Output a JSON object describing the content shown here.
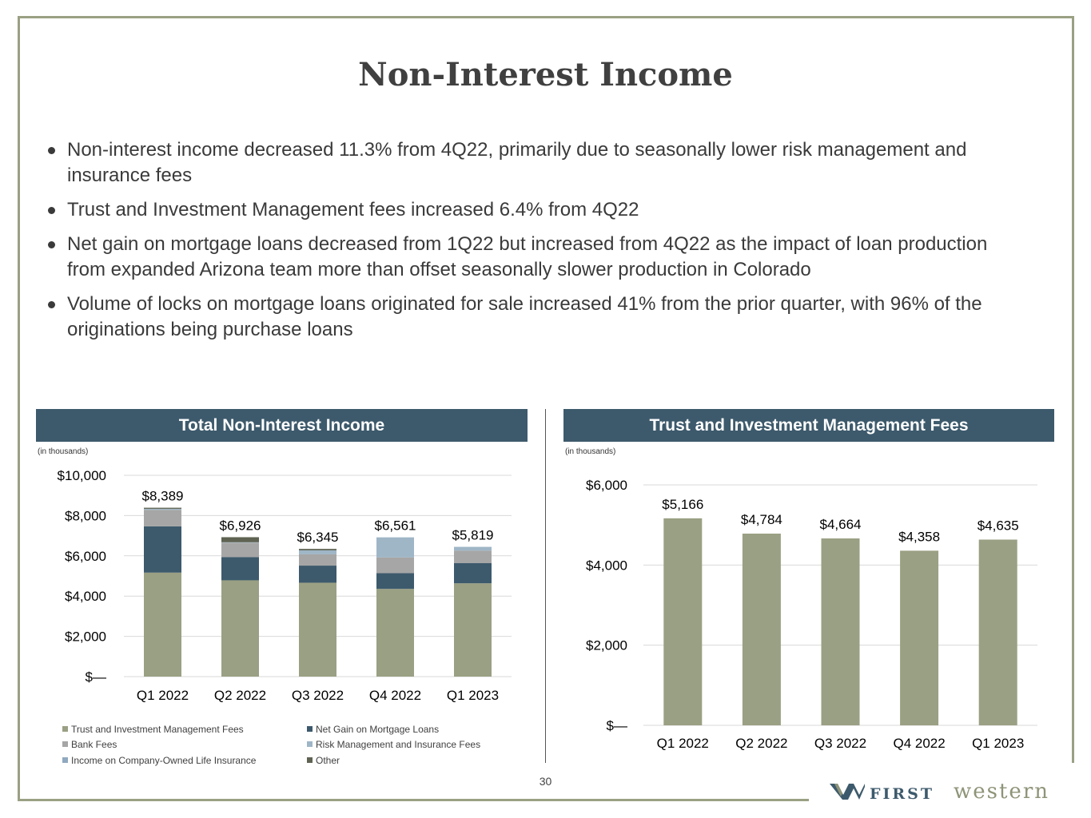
{
  "page": {
    "title": "Non-Interest Income",
    "bullets": [
      "Non-interest income decreased 11.3% from 4Q22, primarily due to seasonally lower risk management and insurance fees",
      "Trust and Investment Management fees increased 6.4% from 4Q22",
      "Net gain on mortgage loans decreased from 1Q22 but increased from 4Q22 as the impact of loan production from expanded Arizona team more than offset seasonally slower production in Colorado",
      "Volume of locks on mortgage loans originated for sale increased 41% from the prior quarter, with 96% of the originations being purchase loans"
    ],
    "page_number": "30",
    "logo": {
      "first": "FIRST",
      "western": "western"
    }
  },
  "colors": {
    "trust": "#9aa083",
    "mortgage": "#3d5a6c",
    "bank": "#a6a6a6",
    "risk": "#9fb6c6",
    "coli": "#8fa9bf",
    "other": "#5e6352",
    "header": "#3d5a6c",
    "grid": "#d9d9d9"
  },
  "chart_data": [
    {
      "type": "bar",
      "stacked": true,
      "title": "Total Non-Interest Income",
      "unit_note": "(in thousands)",
      "categories": [
        "Q1 2022",
        "Q2 2022",
        "Q3 2022",
        "Q4 2022",
        "Q1 2023"
      ],
      "ylim": [
        0,
        10000
      ],
      "yticks": [
        0,
        2000,
        4000,
        6000,
        8000,
        10000
      ],
      "ytick_labels": [
        "$—",
        "$2,000",
        "$4,000",
        "$6,000",
        "$8,000",
        "$10,000"
      ],
      "totals": [
        8389,
        6926,
        6345,
        6561,
        5819
      ],
      "total_labels": [
        "$8,389",
        "$6,926",
        "$6,345",
        "$6,561",
        "$5,819"
      ],
      "series": [
        {
          "name": "Trust and Investment Management Fees",
          "color_key": "trust",
          "values": [
            5166,
            4784,
            4664,
            4358,
            4635
          ]
        },
        {
          "name": "Net Gain on Mortgage Loans",
          "color_key": "mortgage",
          "values": [
            2300,
            1150,
            850,
            780,
            1000
          ]
        },
        {
          "name": "Bank Fees",
          "color_key": "bank",
          "values": [
            820,
            720,
            560,
            780,
            620
          ]
        },
        {
          "name": "Risk Management and Insurance Fees",
          "color_key": "risk",
          "values": [
            50,
            20,
            200,
            1000,
            190
          ]
        },
        {
          "name": "Income on Company-Owned Life Insurance",
          "color_key": "coli",
          "values": [
            0,
            0,
            0,
            0,
            0
          ]
        },
        {
          "name": "Other",
          "color_key": "other",
          "values": [
            53,
            252,
            71,
            -357,
            -626
          ]
        }
      ],
      "legend_placement": "bottom"
    },
    {
      "type": "bar",
      "title": "Trust and Investment Management Fees",
      "unit_note": "(in thousands)",
      "categories": [
        "Q1 2022",
        "Q2 2022",
        "Q3 2022",
        "Q4 2022",
        "Q1 2023"
      ],
      "values": [
        5166,
        4784,
        4664,
        4358,
        4635
      ],
      "value_labels": [
        "$5,166",
        "$4,784",
        "$4,664",
        "$4,358",
        "$4,635"
      ],
      "ylim": [
        0,
        6000
      ],
      "yticks": [
        0,
        2000,
        4000,
        6000
      ],
      "ytick_labels": [
        "$—",
        "$2,000",
        "$4,000",
        "$6,000"
      ]
    }
  ]
}
